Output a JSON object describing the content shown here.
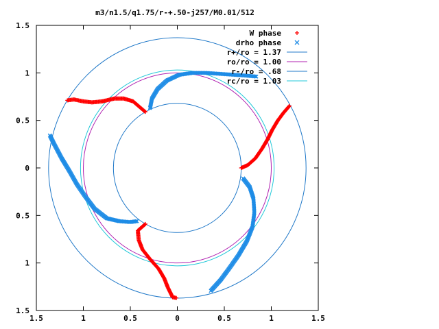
{
  "chart_data": {
    "type": "scatter",
    "title": "m3/n1.5/q1.75/r-+.50-j257/M0.01/512",
    "xlim": [
      -1.5,
      1.5
    ],
    "ylim": [
      -1.5,
      1.5
    ],
    "x_ticks": [
      {
        "v": -1.5,
        "label": "1.5"
      },
      {
        "v": -1.0,
        "label": "1"
      },
      {
        "v": -0.5,
        "label": "0.5"
      },
      {
        "v": 0.0,
        "label": "0"
      },
      {
        "v": 0.5,
        "label": "0.5"
      },
      {
        "v": 1.0,
        "label": "1"
      },
      {
        "v": 1.5,
        "label": "1.5"
      }
    ],
    "y_ticks": [
      {
        "v": 1.5,
        "label": "1.5"
      },
      {
        "v": 1.0,
        "label": "1"
      },
      {
        "v": 0.5,
        "label": "0.5"
      },
      {
        "v": 0.0,
        "label": "0"
      },
      {
        "v": -0.5,
        "label": "0.5"
      },
      {
        "v": -1.0,
        "label": "1"
      },
      {
        "v": -1.5,
        "label": "1.5"
      }
    ],
    "grid": false,
    "legend_position": "top-right",
    "circles": [
      {
        "name": "r+/ro = 1.37",
        "r": 1.37,
        "color": "#1f78c8"
      },
      {
        "name": "ro/ro = 1.00",
        "r": 1.0,
        "color": "#b020b0"
      },
      {
        "name": "r-/ro = .68",
        "r": 0.68,
        "color": "#1f78c8"
      },
      {
        "name": "rc/ro = 1.03",
        "r": 1.03,
        "color": "#20c8d8"
      }
    ],
    "series": [
      {
        "name": "W phase",
        "marker": "+",
        "color": "#ff0000",
        "arms": [
          [
            [
              0.68,
              0.0
            ],
            [
              0.75,
              0.03
            ],
            [
              0.83,
              0.1
            ],
            [
              0.9,
              0.2
            ],
            [
              0.96,
              0.3
            ],
            [
              1.01,
              0.4
            ],
            [
              1.07,
              0.5
            ],
            [
              1.13,
              0.58
            ],
            [
              1.2,
              0.66
            ]
          ],
          [
            [
              -0.34,
              -0.59
            ],
            [
              -0.42,
              -0.66
            ],
            [
              -0.41,
              -0.76
            ],
            [
              -0.37,
              -0.86
            ],
            [
              -0.29,
              -0.96
            ],
            [
              -0.2,
              -1.06
            ],
            [
              -0.14,
              -1.16
            ],
            [
              -0.1,
              -1.26
            ],
            [
              -0.05,
              -1.36
            ],
            [
              0.0,
              -1.37
            ]
          ],
          [
            [
              -0.34,
              0.59
            ],
            [
              -0.4,
              0.64
            ],
            [
              -0.47,
              0.7
            ],
            [
              -0.57,
              0.73
            ],
            [
              -0.67,
              0.73
            ],
            [
              -0.8,
              0.7
            ],
            [
              -0.91,
              0.69
            ],
            [
              -1.0,
              0.7
            ],
            [
              -1.1,
              0.72
            ],
            [
              -1.18,
              0.71
            ]
          ]
        ]
      },
      {
        "name": "drho phase",
        "marker": "x",
        "color": "#1e8ce6",
        "arms": [
          [
            [
              -0.29,
              0.63
            ],
            [
              -0.27,
              0.73
            ],
            [
              -0.21,
              0.83
            ],
            [
              -0.11,
              0.92
            ],
            [
              0.02,
              0.98
            ],
            [
              0.16,
              1.0
            ],
            [
              0.3,
              1.0
            ],
            [
              0.45,
              0.99
            ],
            [
              0.6,
              0.98
            ],
            [
              0.75,
              0.97
            ],
            [
              0.85,
              0.96
            ]
          ],
          [
            [
              0.7,
              -0.11
            ],
            [
              0.77,
              -0.2
            ],
            [
              0.81,
              -0.32
            ],
            [
              0.82,
              -0.47
            ],
            [
              0.8,
              -0.62
            ],
            [
              0.74,
              -0.77
            ],
            [
              0.65,
              -0.92
            ],
            [
              0.55,
              -1.06
            ],
            [
              0.46,
              -1.18
            ],
            [
              0.35,
              -1.3
            ]
          ],
          [
            [
              -0.43,
              -0.56
            ],
            [
              -0.5,
              -0.57
            ],
            [
              -0.62,
              -0.56
            ],
            [
              -0.75,
              -0.53
            ],
            [
              -0.88,
              -0.43
            ],
            [
              -0.98,
              -0.3
            ],
            [
              -1.07,
              -0.17
            ],
            [
              -1.15,
              -0.03
            ],
            [
              -1.23,
              0.1
            ],
            [
              -1.31,
              0.25
            ],
            [
              -1.36,
              0.35
            ]
          ]
        ]
      }
    ]
  }
}
